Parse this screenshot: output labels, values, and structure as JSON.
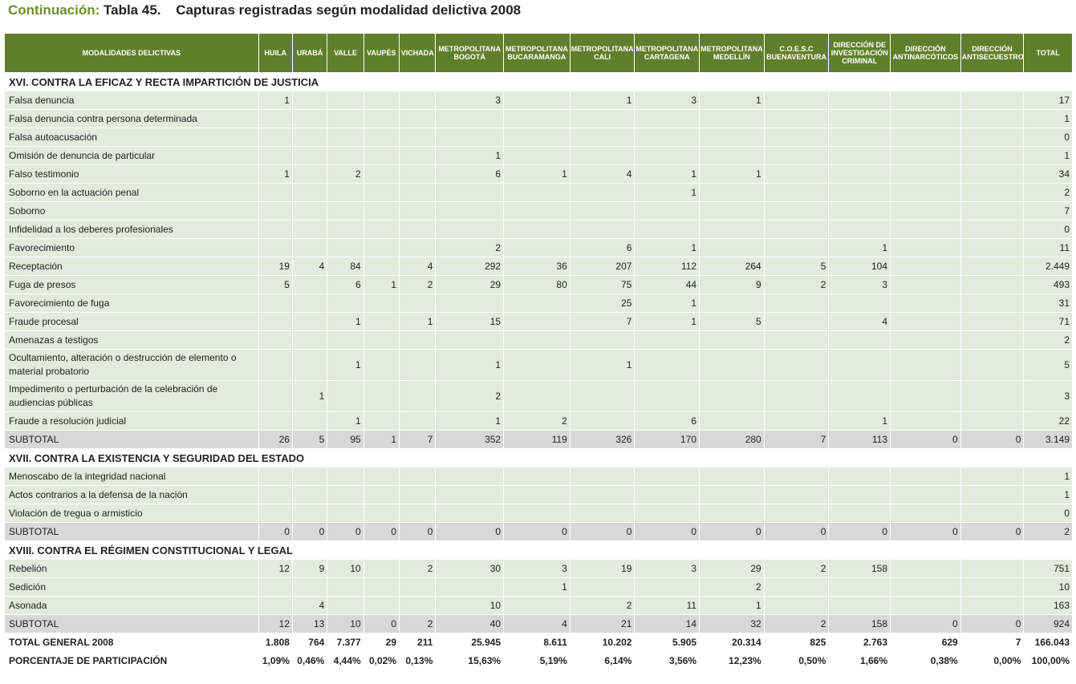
{
  "title": {
    "lead": "Continuación:",
    "number": "Tabla 45.",
    "text": "Capturas registradas según modalidad delictiva 2008"
  },
  "columns": [
    "MODALIDADES DELICTIVAS",
    "HUILA",
    "URABÁ",
    "VALLE",
    "VAUPÉS",
    "VICHADA",
    "METROPOLITANA BOGOTÁ",
    "METROPOLITANA BUCARAMANGA",
    "METROPOLITANA CALI",
    "METROPOLITANA CARTAGENA",
    "METROPOLITANA MEDELLÍN",
    "C.O.E.S.C BUENAVENTURA",
    "DIRECCIÓN DE INVESTIGACIÓN CRIMINAL",
    "DIRECCIÓN ANTINARCÓTICOS",
    "DIRECCIÓN ANTISECUESTRO",
    "TOTAL"
  ],
  "rows": [
    {
      "type": "section",
      "label": "XVI. CONTRA LA EFICAZ Y RECTA IMPARTICIÓN DE JUSTICIA"
    },
    {
      "type": "data",
      "label": "Falsa denuncia",
      "values": [
        "1",
        "",
        "",
        "",
        "",
        "3",
        "",
        "1",
        "3",
        "1",
        "",
        "",
        "",
        "",
        "17"
      ]
    },
    {
      "type": "data",
      "label": "Falsa denuncia contra persona determinada",
      "values": [
        "",
        "",
        "",
        "",
        "",
        "",
        "",
        "",
        "",
        "",
        "",
        "",
        "",
        "",
        "1"
      ]
    },
    {
      "type": "data",
      "label": "Falsa autoacusación",
      "values": [
        "",
        "",
        "",
        "",
        "",
        "",
        "",
        "",
        "",
        "",
        "",
        "",
        "",
        "",
        "0"
      ]
    },
    {
      "type": "data",
      "label": "Omisión de denuncia de particular",
      "values": [
        "",
        "",
        "",
        "",
        "",
        "1",
        "",
        "",
        "",
        "",
        "",
        "",
        "",
        "",
        "1"
      ]
    },
    {
      "type": "data",
      "label": "Falso testimonio",
      "values": [
        "1",
        "",
        "2",
        "",
        "",
        "6",
        "1",
        "4",
        "1",
        "1",
        "",
        "",
        "",
        "",
        "34"
      ]
    },
    {
      "type": "data",
      "label": "Soborno en la actuación penal",
      "values": [
        "",
        "",
        "",
        "",
        "",
        "",
        "",
        "",
        "1",
        "",
        "",
        "",
        "",
        "",
        "2"
      ]
    },
    {
      "type": "data",
      "label": "Soborno",
      "values": [
        "",
        "",
        "",
        "",
        "",
        "",
        "",
        "",
        "",
        "",
        "",
        "",
        "",
        "",
        "7"
      ]
    },
    {
      "type": "data",
      "label": "Infidelidad a los deberes profesionales",
      "values": [
        "",
        "",
        "",
        "",
        "",
        "",
        "",
        "",
        "",
        "",
        "",
        "",
        "",
        "",
        "0"
      ]
    },
    {
      "type": "data",
      "label": "Favorecimiento",
      "values": [
        "",
        "",
        "",
        "",
        "",
        "2",
        "",
        "6",
        "1",
        "",
        "",
        "1",
        "",
        "",
        "11"
      ]
    },
    {
      "type": "data",
      "label": "Receptación",
      "values": [
        "19",
        "4",
        "84",
        "",
        "4",
        "292",
        "36",
        "207",
        "112",
        "264",
        "5",
        "104",
        "",
        "",
        "2.449"
      ]
    },
    {
      "type": "data",
      "label": "Fuga de presos",
      "values": [
        "5",
        "",
        "6",
        "1",
        "2",
        "29",
        "80",
        "75",
        "44",
        "9",
        "2",
        "3",
        "",
        "",
        "493"
      ]
    },
    {
      "type": "data",
      "label": "Favorecimiento de fuga",
      "values": [
        "",
        "",
        "",
        "",
        "",
        "",
        "",
        "25",
        "1",
        "",
        "",
        "",
        "",
        "",
        "31"
      ]
    },
    {
      "type": "data",
      "label": "Fraude procesal",
      "values": [
        "",
        "",
        "1",
        "",
        "1",
        "15",
        "",
        "7",
        "1",
        "5",
        "",
        "4",
        "",
        "",
        "71"
      ]
    },
    {
      "type": "data",
      "label": "Amenazas a testigos",
      "values": [
        "",
        "",
        "",
        "",
        "",
        "",
        "",
        "",
        "",
        "",
        "",
        "",
        "",
        "",
        "2"
      ]
    },
    {
      "type": "data2",
      "label": "Ocultamiento, alteración o destrucción de elemento o material probatorio",
      "values": [
        "",
        "",
        "1",
        "",
        "",
        "1",
        "",
        "1",
        "",
        "",
        "",
        "",
        "",
        "",
        "5"
      ]
    },
    {
      "type": "data2",
      "label": "Impedimento o perturbación de la celebración de audiencias públicas",
      "values": [
        "",
        "1",
        "",
        "",
        "",
        "2",
        "",
        "",
        "",
        "",
        "",
        "",
        "",
        "",
        "3"
      ]
    },
    {
      "type": "data",
      "label": "Fraude a resolución judicial",
      "values": [
        "",
        "",
        "1",
        "",
        "",
        "1",
        "2",
        "",
        "6",
        "",
        "",
        "1",
        "",
        "",
        "22"
      ]
    },
    {
      "type": "subtotal",
      "label": "SUBTOTAL",
      "values": [
        "26",
        "5",
        "95",
        "1",
        "7",
        "352",
        "119",
        "326",
        "170",
        "280",
        "7",
        "113",
        "0",
        "0",
        "3.149"
      ]
    },
    {
      "type": "section",
      "label": "XVII. CONTRA LA EXISTENCIA Y SEGURIDAD DEL ESTADO"
    },
    {
      "type": "data",
      "label": "Menoscabo de la integridad nacional",
      "values": [
        "",
        "",
        "",
        "",
        "",
        "",
        "",
        "",
        "",
        "",
        "",
        "",
        "",
        "",
        "1"
      ]
    },
    {
      "type": "data",
      "label": "Actos contrarios a la defensa de la nación",
      "values": [
        "",
        "",
        "",
        "",
        "",
        "",
        "",
        "",
        "",
        "",
        "",
        "",
        "",
        "",
        "1"
      ]
    },
    {
      "type": "data",
      "label": "Violación de tregua o armisticio",
      "values": [
        "",
        "",
        "",
        "",
        "",
        "",
        "",
        "",
        "",
        "",
        "",
        "",
        "",
        "",
        "0"
      ]
    },
    {
      "type": "subtotal",
      "label": "SUBTOTAL",
      "values": [
        "0",
        "0",
        "0",
        "0",
        "0",
        "0",
        "0",
        "0",
        "0",
        "0",
        "0",
        "0",
        "0",
        "0",
        "2"
      ]
    },
    {
      "type": "section",
      "label": "XVIII. CONTRA EL RÉGIMEN CONSTITUCIONAL Y LEGAL"
    },
    {
      "type": "data",
      "label": "Rebelión",
      "values": [
        "12",
        "9",
        "10",
        "",
        "2",
        "30",
        "3",
        "19",
        "3",
        "29",
        "2",
        "158",
        "",
        "",
        "751"
      ]
    },
    {
      "type": "data",
      "label": "Sedición",
      "values": [
        "",
        "",
        "",
        "",
        "",
        "",
        "1",
        "",
        "",
        "2",
        "",
        "",
        "",
        "",
        "10"
      ]
    },
    {
      "type": "data",
      "label": "Asonada",
      "values": [
        "",
        "4",
        "",
        "",
        "",
        "10",
        "",
        "2",
        "11",
        "1",
        "",
        "",
        "",
        "",
        "163"
      ]
    },
    {
      "type": "subtotal",
      "label": "SUBTOTAL",
      "values": [
        "12",
        "13",
        "10",
        "0",
        "2",
        "40",
        "4",
        "21",
        "14",
        "32",
        "2",
        "158",
        "0",
        "0",
        "924"
      ]
    },
    {
      "type": "total",
      "label": "TOTAL GENERAL 2008",
      "values": [
        "1.808",
        "764",
        "7.377",
        "29",
        "211",
        "25.945",
        "8.611",
        "10.202",
        "5.905",
        "20.314",
        "825",
        "2.763",
        "629",
        "7",
        "166.043"
      ]
    },
    {
      "type": "total",
      "label": "PORCENTAJE DE PARTICIPACIÓN",
      "values": [
        "1,09%",
        "0,46%",
        "4,44%",
        "0,02%",
        "0,13%",
        "15,63%",
        "5,19%",
        "6,14%",
        "3,56%",
        "12,23%",
        "0,50%",
        "1,66%",
        "0,38%",
        "0,00%",
        "100,00%"
      ]
    }
  ]
}
